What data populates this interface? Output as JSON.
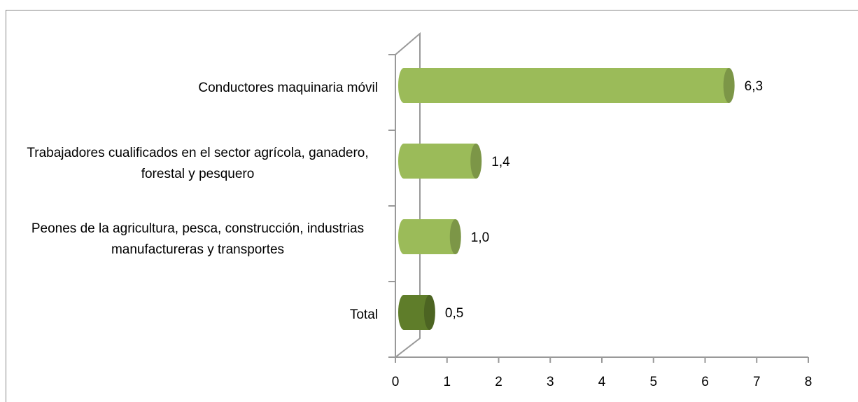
{
  "chart_data": {
    "type": "bar",
    "orientation": "horizontal",
    "categories": [
      "Conductores maquinaria móvil",
      "Trabajadores cualificados en el sector agrícola, ganadero, forestal y pesquero",
      "Peones de la agricultura, pesca, construcción, industrias manufactureras y transportes",
      "Total"
    ],
    "values": [
      6.3,
      1.4,
      1.0,
      0.5
    ],
    "value_labels": [
      "6,3",
      "1,4",
      "1,0",
      "0,5"
    ],
    "colors": [
      "#9bbb59",
      "#9bbb59",
      "#9bbb59",
      "#5f7d2a"
    ],
    "xlim": [
      0,
      8
    ],
    "xticks": [
      0,
      1,
      2,
      3,
      4,
      5,
      6,
      7,
      8
    ],
    "grid": false
  }
}
